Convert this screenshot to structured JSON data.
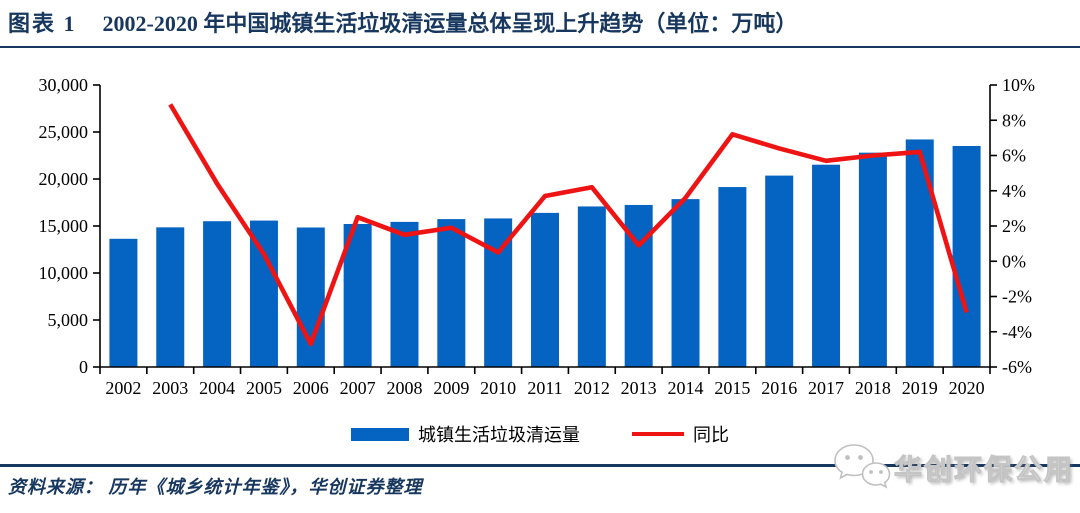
{
  "header": {
    "figure_label": "图表 1",
    "title": "2002-2020 年中国城镇生活垃圾清运量总体呈现上升趋势（单位：万吨）"
  },
  "chart_data": {
    "type": "bar+line combo",
    "categories": [
      "2002",
      "2003",
      "2004",
      "2005",
      "2006",
      "2007",
      "2008",
      "2009",
      "2010",
      "2011",
      "2012",
      "2013",
      "2014",
      "2015",
      "2016",
      "2017",
      "2018",
      "2019",
      "2020"
    ],
    "series": [
      {
        "name": "城镇生活垃圾清运量",
        "type": "bar",
        "axis": "left",
        "color": "#0563c1",
        "values": [
          13638,
          14857,
          15509,
          15577,
          14841,
          15215,
          15438,
          15734,
          15805,
          16395,
          17081,
          17239,
          17860,
          19142,
          20362,
          21521,
          22802,
          24206,
          23512
        ]
      },
      {
        "name": "同比",
        "type": "line",
        "axis": "right",
        "color": "#ee1414",
        "values": [
          null,
          8.9,
          4.4,
          0.4,
          -4.7,
          2.5,
          1.5,
          1.9,
          0.5,
          3.7,
          4.2,
          0.9,
          3.6,
          7.2,
          6.4,
          5.7,
          6.0,
          6.2,
          -2.9
        ]
      }
    ],
    "left_axis": {
      "min": 0,
      "max": 30000,
      "step": 5000,
      "format": "thousands"
    },
    "right_axis": {
      "min": -6,
      "max": 10,
      "step": 2,
      "format": "percent"
    },
    "grid": false,
    "legend_position": "bottom",
    "title": "2002-2020 年中国城镇生活垃圾清运量总体呈现上升趋势（单位：万吨）",
    "xlabel": "",
    "ylabel_left": "万吨",
    "ylabel_right": "%"
  },
  "footer": {
    "source": "资料来源： 历年《城乡统计年鉴》，华创证券整理"
  },
  "watermark": {
    "text": "华创环保公用",
    "icon": "wechat-icon"
  },
  "colors": {
    "navy": "#17375e",
    "bar_blue": "#0563c1",
    "line_red": "#ee1414"
  }
}
